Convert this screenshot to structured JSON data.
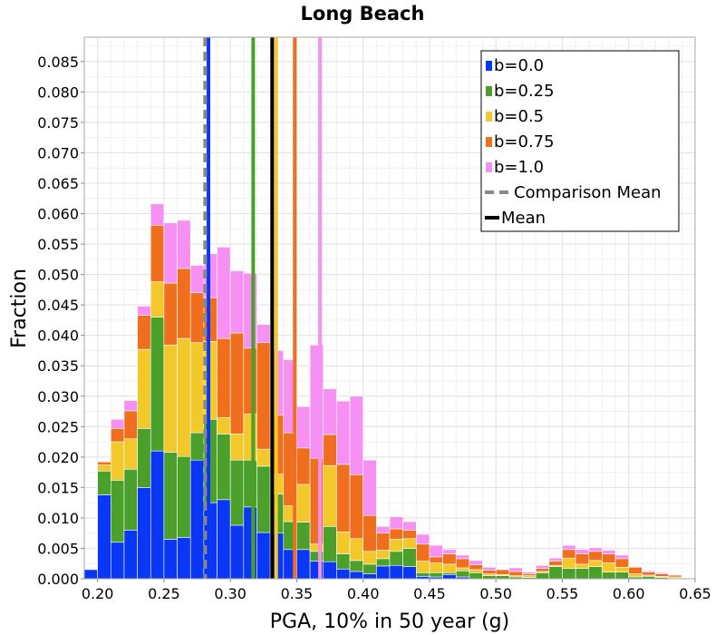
{
  "chart_data": {
    "type": "bar",
    "stacked": true,
    "title": "Long Beach",
    "xlabel": "PGA, 10% in 50 year (g)",
    "ylabel": "Fraction",
    "xlim": [
      0.19,
      0.65
    ],
    "ylim": [
      0.0,
      0.089
    ],
    "xticks": [
      "0.20",
      "0.25",
      "0.30",
      "0.35",
      "0.40",
      "0.45",
      "0.50",
      "0.55",
      "0.60",
      "0.65"
    ],
    "xtick_values": [
      0.2,
      0.25,
      0.3,
      0.35,
      0.4,
      0.45,
      0.5,
      0.55,
      0.6,
      0.65
    ],
    "yticks": [
      "0.000",
      "0.005",
      "0.010",
      "0.015",
      "0.020",
      "0.025",
      "0.030",
      "0.035",
      "0.040",
      "0.045",
      "0.050",
      "0.055",
      "0.060",
      "0.065",
      "0.070",
      "0.075",
      "0.080",
      "0.085"
    ],
    "ytick_values": [
      0.0,
      0.005,
      0.01,
      0.015,
      0.02,
      0.025,
      0.03,
      0.035,
      0.04,
      0.045,
      0.05,
      0.055,
      0.06,
      0.065,
      0.07,
      0.075,
      0.08,
      0.085
    ],
    "grid": true,
    "legend_position": "top-right",
    "bin_width": 0.01,
    "bin_centers": [
      0.195,
      0.205,
      0.215,
      0.225,
      0.235,
      0.245,
      0.255,
      0.265,
      0.275,
      0.285,
      0.295,
      0.305,
      0.315,
      0.325,
      0.335,
      0.345,
      0.355,
      0.365,
      0.375,
      0.385,
      0.395,
      0.405,
      0.415,
      0.425,
      0.435,
      0.445,
      0.455,
      0.465,
      0.475,
      0.485,
      0.495,
      0.505,
      0.515,
      0.525,
      0.535,
      0.545,
      0.555,
      0.565,
      0.575,
      0.585,
      0.595,
      0.605,
      0.615,
      0.625,
      0.635,
      0.645
    ],
    "series": [
      {
        "name": "b=0.0",
        "color": "#0a36f5",
        "values": [
          0.0015,
          0.0138,
          0.006,
          0.008,
          0.015,
          0.021,
          0.0065,
          0.0068,
          0.0195,
          0.0125,
          0.013,
          0.0088,
          0.0118,
          0.0076,
          0.0075,
          0.0048,
          0.0048,
          0.0029,
          0.0028,
          0.0016,
          0.0012,
          0.0008,
          0.0021,
          0.0022,
          0.002,
          0.0004,
          0.0003,
          0.0007,
          0.0003,
          0.0,
          0.0,
          0.0,
          0.0,
          0.0,
          0.0,
          0.0,
          0.0,
          0.0,
          0.0,
          0.0,
          0.0,
          0.0,
          0.0,
          0.0,
          0.0,
          0.0
        ]
      },
      {
        "name": "b=0.25",
        "color": "#4aa02a",
        "values": [
          0.0,
          0.0039,
          0.0102,
          0.01,
          0.0097,
          0.022,
          0.0143,
          0.0133,
          0.0045,
          0.0137,
          0.0108,
          0.0107,
          0.0077,
          0.0109,
          0.0064,
          0.0046,
          0.0045,
          0.0016,
          0.0058,
          0.0025,
          0.0018,
          0.0016,
          0.0012,
          0.0023,
          0.003,
          0.0006,
          0.0007,
          0.0003,
          0.001,
          0.001,
          0.0005,
          0.0005,
          0.0003,
          0.0002,
          0.001,
          0.002,
          0.0017,
          0.0017,
          0.002,
          0.0011,
          0.0011,
          0.0003,
          0.0004,
          0.0002,
          0.0001,
          0.0
        ]
      },
      {
        "name": "b=0.5",
        "color": "#f2c82a",
        "values": [
          0.0,
          0.001,
          0.0063,
          0.005,
          0.013,
          0.0058,
          0.0176,
          0.0194,
          0.0148,
          0.0128,
          0.0027,
          0.0043,
          0.0076,
          0.0028,
          0.0033,
          0.0026,
          0.0062,
          0.0012,
          0.01,
          0.0036,
          0.0036,
          0.0021,
          0.0014,
          0.002,
          0.0016,
          0.0019,
          0.0016,
          0.0014,
          0.0005,
          0.0005,
          0.0003,
          0.0002,
          0.0002,
          0.0003,
          0.0002,
          0.0002,
          0.0017,
          0.0007,
          0.001,
          0.0015,
          0.0008,
          0.0005,
          0.0002,
          0.0002,
          0.0002,
          0.0001
        ]
      },
      {
        "name": "b=0.75",
        "color": "#f06f1f",
        "values": [
          0.0,
          0.0005,
          0.0022,
          0.0046,
          0.0056,
          0.0093,
          0.0102,
          0.0115,
          0.0082,
          0.0072,
          0.013,
          0.0166,
          0.0108,
          0.0175,
          0.0097,
          0.012,
          0.006,
          0.0141,
          0.0051,
          0.0111,
          0.0105,
          0.0059,
          0.0028,
          0.0017,
          0.0014,
          0.0028,
          0.001,
          0.0017,
          0.0015,
          0.0008,
          0.0006,
          0.0008,
          0.0007,
          0.0003,
          0.0005,
          0.0007,
          0.0014,
          0.0017,
          0.0015,
          0.0015,
          0.0014,
          0.0011,
          0.0005,
          0.0004,
          0.0003,
          0.0001
        ]
      },
      {
        "name": "b=1.0",
        "color": "#f690f3",
        "values": [
          0.0,
          0.0,
          0.0015,
          0.0017,
          0.0015,
          0.0035,
          0.0099,
          0.0079,
          0.0045,
          0.0072,
          0.015,
          0.0102,
          0.0123,
          0.003,
          0.0106,
          0.012,
          0.0068,
          0.0186,
          0.0075,
          0.0104,
          0.0129,
          0.0091,
          0.0011,
          0.002,
          0.0014,
          0.0016,
          0.0019,
          0.0007,
          0.0006,
          0.0007,
          0.0005,
          0.0001,
          0.0006,
          0.0003,
          0.0005,
          0.0005,
          0.0007,
          0.0007,
          0.0006,
          0.0006,
          0.0006,
          0.0001,
          0.0002,
          0.0002,
          0.0001,
          0.0001
        ]
      }
    ],
    "mean_lines": [
      {
        "series": "b=0.0",
        "x": 0.2835,
        "color": "#0a36f5"
      },
      {
        "series": "b=0.25",
        "x": 0.3172,
        "color": "#4aa02a"
      },
      {
        "series": "b=0.5",
        "x": 0.3345,
        "color": "#f2c82a"
      },
      {
        "series": "b=0.75",
        "x": 0.3485,
        "color": "#f06f1f"
      },
      {
        "series": "b=1.0",
        "x": 0.3675,
        "color": "#f690f3"
      }
    ],
    "overall_mean": {
      "name": "Mean",
      "x": 0.3315,
      "color": "#000000"
    },
    "comparison_mean": {
      "name": "Comparison Mean",
      "x": 0.281,
      "color": "#888888"
    }
  }
}
